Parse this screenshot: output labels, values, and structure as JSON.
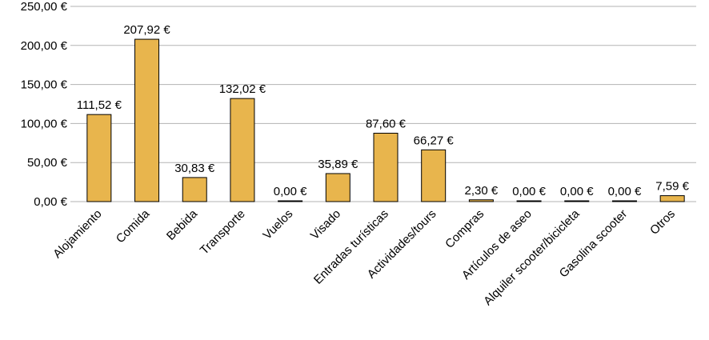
{
  "chart_data": {
    "type": "bar",
    "categories": [
      "Alojamiento",
      "Comida",
      "Bebida",
      "Transporte",
      "Vuelos",
      "Visado",
      "Entradas turísticas",
      "Actividades/tours",
      "Compras",
      "Artículos de aseo",
      "Alquiler scooter/bicicleta",
      "Gasolina scooter",
      "Otros"
    ],
    "values": [
      111.52,
      207.92,
      30.83,
      132.02,
      0.0,
      35.89,
      87.6,
      66.27,
      2.3,
      0.0,
      0.0,
      0.0,
      7.59
    ],
    "data_labels": [
      "111,52 €",
      "207,92 €",
      "30,83 €",
      "132,02 €",
      "0,00 €",
      "35,89 €",
      "87,60 €",
      "66,27 €",
      "2,30 €",
      "0,00 €",
      "0,00 €",
      "0,00 €",
      "7,59 €"
    ],
    "y_ticks": [
      0,
      50,
      100,
      150,
      200,
      250
    ],
    "y_tick_labels": [
      "0,00 €",
      "50,00 €",
      "100,00 €",
      "150,00 €",
      "200,00 €",
      "250,00 €"
    ],
    "ylim": [
      0,
      250
    ],
    "grid": true,
    "legend": "none",
    "bar_color": "#e8b54d",
    "title": "",
    "xlabel": "",
    "ylabel": ""
  }
}
